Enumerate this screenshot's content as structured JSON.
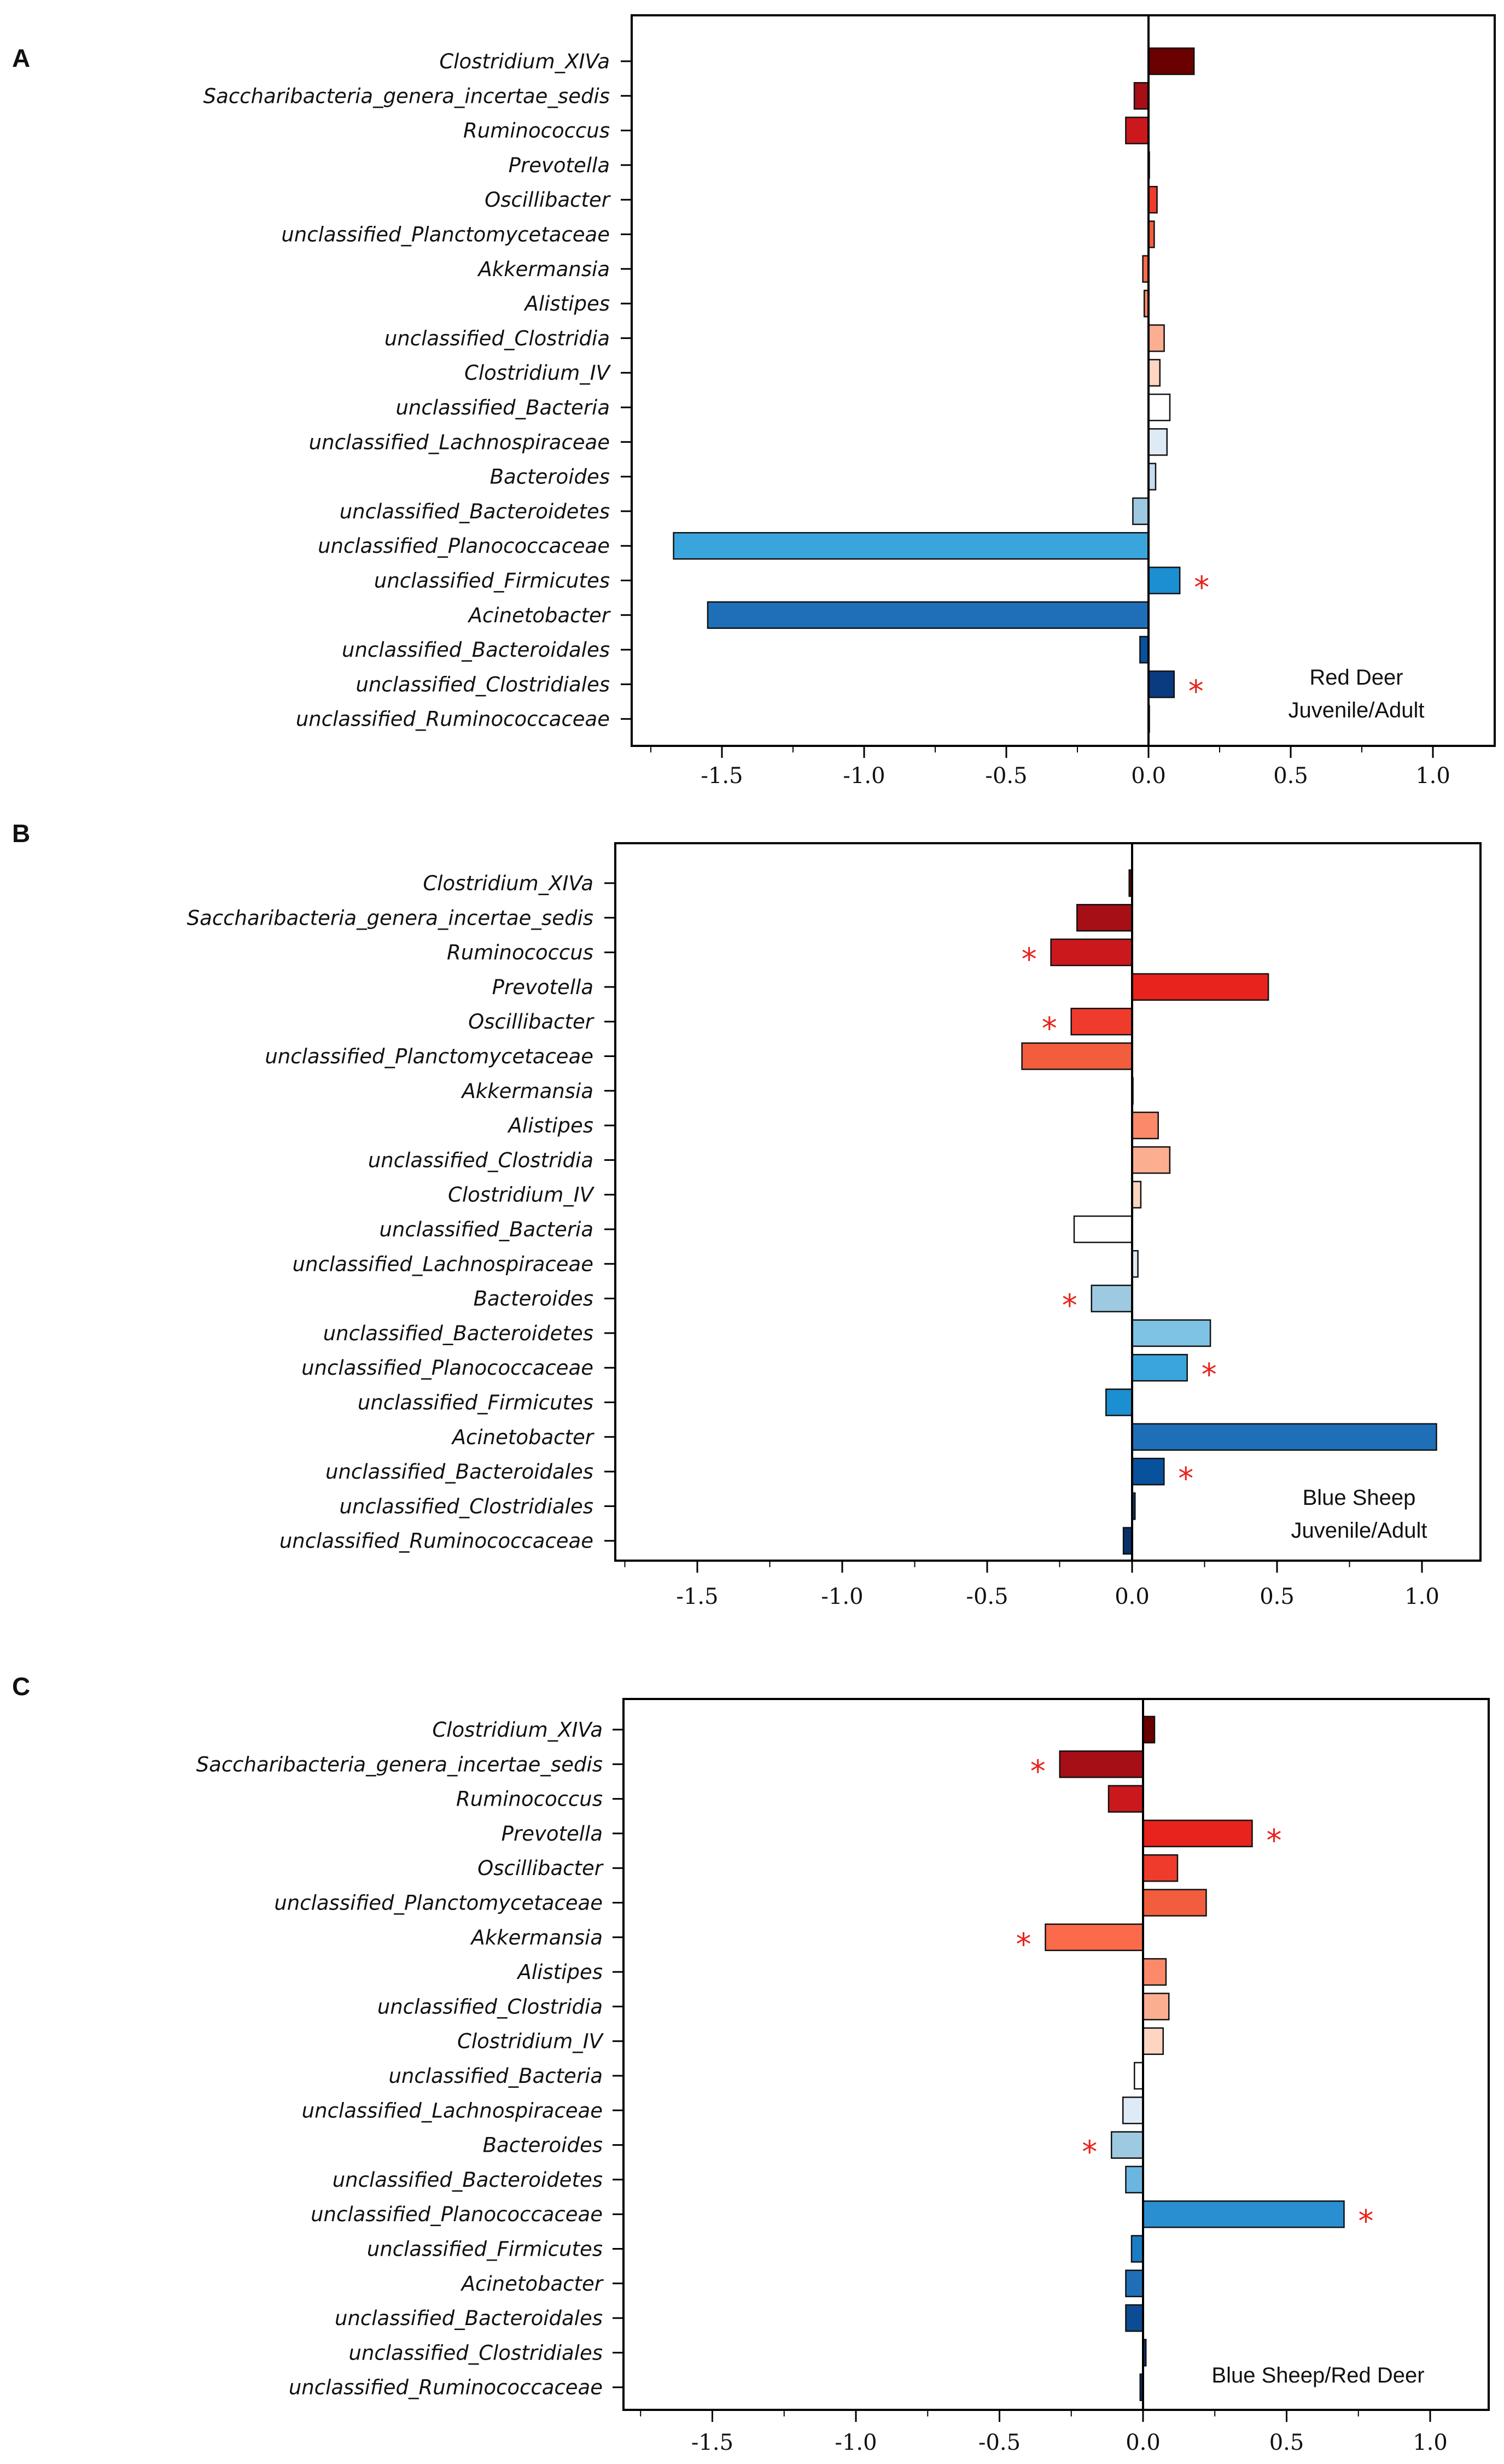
{
  "chart_data": [
    {
      "type": "bar",
      "orientation": "horizontal",
      "panel": "A",
      "annotation_lines": [
        "Red Deer",
        "Juvenile/Adult"
      ],
      "categories": [
        "Clostridium_XIVa",
        "Saccharibacteria_genera_incertae_sedis",
        "Ruminococcus",
        "Prevotella",
        "Oscillibacter",
        "unclassified_Planctomycetaceae",
        "Akkermansia",
        "Alistipes",
        "unclassified_Clostridia",
        "Clostridium_IV",
        "unclassified_Bacteria",
        "unclassified_Lachnospiraceae",
        "Bacteroides",
        "unclassified_Bacteroidetes",
        "unclassified_Planococcaceae",
        "unclassified_Firmicutes",
        "Acinetobacter",
        "unclassified_Bacteroidales",
        "unclassified_Clostridiales",
        "unclassified_Ruminococcaceae"
      ],
      "values": [
        0.16,
        -0.05,
        -0.08,
        0.0,
        0.03,
        0.02,
        -0.02,
        -0.015,
        0.055,
        0.04,
        0.075,
        0.065,
        0.025,
        -0.055,
        -1.67,
        0.11,
        -1.55,
        -0.03,
        0.09,
        0.0
      ],
      "significant": [
        false,
        false,
        false,
        false,
        false,
        false,
        false,
        false,
        false,
        false,
        false,
        false,
        false,
        false,
        false,
        true,
        false,
        false,
        true,
        false
      ],
      "colors": [
        "#6a0000",
        "#a50f15",
        "#cb181d",
        "#e8221c",
        "#ef3b2c",
        "#f25d3d",
        "#fb6a4a",
        "#fc8a6a",
        "#fcae91",
        "#fdd5c1",
        "#ffffff",
        "#deebf7",
        "#c6dbef",
        "#9ecae1",
        "#3aa5dc",
        "#1b8fd1",
        "#1f6fb8",
        "#08519c",
        "#0a3a80",
        "#08306b"
      ],
      "xlim": [
        -1.8,
        1.1
      ],
      "xticks": [
        -1.5,
        -1.0,
        -0.5,
        0.0,
        0.5,
        1.0
      ],
      "xtick_labels": [
        "-1.5",
        "-1.0",
        "-0.5",
        "0.0",
        "0.5",
        "1.0"
      ]
    },
    {
      "type": "bar",
      "orientation": "horizontal",
      "panel": "B",
      "annotation_lines": [
        "Blue Sheep",
        "Juvenile/Adult"
      ],
      "categories": [
        "Clostridium_XIVa",
        "Saccharibacteria_genera_incertae_sedis",
        "Ruminococcus",
        "Prevotella",
        "Oscillibacter",
        "unclassified_Planctomycetaceae",
        "Akkermansia",
        "Alistipes",
        "unclassified_Clostridia",
        "Clostridium_IV",
        "unclassified_Bacteria",
        "unclassified_Lachnospiraceae",
        "Bacteroides",
        "unclassified_Bacteroidetes",
        "unclassified_Planococcaceae",
        "unclassified_Firmicutes",
        "Acinetobacter",
        "unclassified_Bacteroidales",
        "unclassified_Clostridiales",
        "unclassified_Ruminococcaceae"
      ],
      "values": [
        -0.01,
        -0.19,
        -0.28,
        0.47,
        -0.21,
        -0.38,
        0.0,
        0.09,
        0.13,
        0.03,
        -0.2,
        0.02,
        -0.14,
        0.27,
        0.19,
        -0.09,
        1.05,
        0.11,
        0.01,
        -0.03
      ],
      "significant": [
        false,
        false,
        true,
        false,
        true,
        false,
        false,
        false,
        false,
        false,
        false,
        false,
        true,
        false,
        true,
        false,
        false,
        true,
        false,
        false
      ],
      "colors": [
        "#6a0000",
        "#a50f15",
        "#cb181d",
        "#e8221c",
        "#ef3b2c",
        "#f25d3d",
        "#fb6a4a",
        "#fc8a6a",
        "#fcae91",
        "#fdd5c1",
        "#ffffff",
        "#deebf7",
        "#9ecae1",
        "#7ec3e4",
        "#3aa5dc",
        "#1b8fd1",
        "#1f6fb8",
        "#08519c",
        "#0a3a80",
        "#08306b"
      ],
      "xlim": [
        -1.8,
        1.2
      ],
      "xticks": [
        -1.5,
        -1.0,
        -0.5,
        0.0,
        0.5,
        1.0
      ],
      "xtick_labels": [
        "-1.5",
        "-1.0",
        "-0.5",
        "0.0",
        "0.5",
        "1.0"
      ]
    },
    {
      "type": "bar",
      "orientation": "horizontal",
      "panel": "C",
      "annotation_lines": [
        "Blue Sheep/Red Deer"
      ],
      "categories": [
        "Clostridium_XIVa",
        "Saccharibacteria_genera_incertae_sedis",
        "Ruminococcus",
        "Prevotella",
        "Oscillibacter",
        "unclassified_Planctomycetaceae",
        "Akkermansia",
        "Alistipes",
        "unclassified_Clostridia",
        "Clostridium_IV",
        "unclassified_Bacteria",
        "unclassified_Lachnospiraceae",
        "Bacteroides",
        "unclassified_Bacteroidetes",
        "unclassified_Planococcaceae",
        "unclassified_Firmicutes",
        "Acinetobacter",
        "unclassified_Bacteroidales",
        "unclassified_Clostridiales",
        "unclassified_Ruminococcaceae"
      ],
      "values": [
        0.04,
        -0.29,
        -0.12,
        0.38,
        0.12,
        0.22,
        -0.34,
        0.08,
        0.09,
        0.07,
        -0.03,
        -0.07,
        -0.11,
        -0.06,
        0.7,
        -0.04,
        -0.06,
        -0.06,
        0.01,
        -0.01
      ],
      "significant": [
        false,
        true,
        false,
        true,
        false,
        false,
        true,
        false,
        false,
        false,
        false,
        false,
        true,
        false,
        true,
        false,
        false,
        false,
        false,
        false
      ],
      "colors": [
        "#6a0000",
        "#a50f15",
        "#cb181d",
        "#e8221c",
        "#ef3b2c",
        "#f25d3d",
        "#fb6a4a",
        "#fc8a6a",
        "#fcae91",
        "#fdd5c1",
        "#ffffff",
        "#deebf7",
        "#9ecae1",
        "#6bb6e0",
        "#2a8fd0",
        "#1b7cc4",
        "#1f6fb8",
        "#0d4b94",
        "#0a3a80",
        "#08306b"
      ],
      "xlim": [
        -1.8,
        1.15
      ],
      "xticks": [
        -1.5,
        -1.0,
        -0.5,
        0.0,
        0.5,
        1.0
      ],
      "xtick_labels": [
        "-1.5",
        "-1.0",
        "-0.5",
        "0.0",
        "0.5",
        "1.0"
      ]
    }
  ],
  "significance_marker": "*",
  "colors": {
    "axis": "#000000",
    "bar_edge": "#111111",
    "star": "#e8221c"
  }
}
